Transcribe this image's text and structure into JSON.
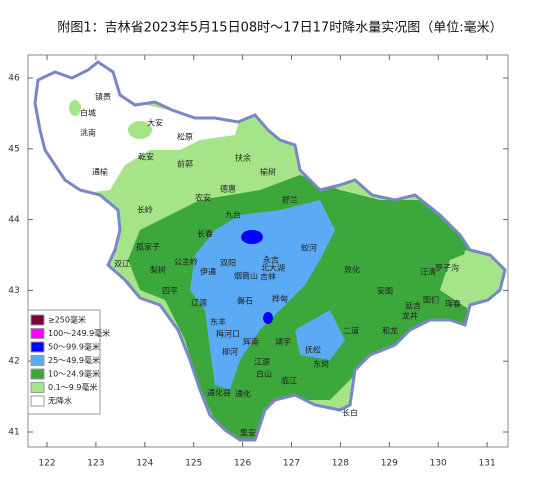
{
  "title": "附图1：吉林省2023年5月15日08时～17日17时降水量实况图（单位:毫米）",
  "axes": {
    "xticks": [
      122,
      123,
      124,
      125,
      126,
      127,
      128,
      129,
      130,
      131
    ],
    "yticks": [
      41,
      42,
      43,
      44,
      45,
      46
    ]
  },
  "legend": [
    {
      "label": "≥250毫米",
      "color": "#7b0040"
    },
    {
      "label": "100～249.9毫米",
      "color": "#ff00ff"
    },
    {
      "label": "50～99.9毫米",
      "color": "#0000ff"
    },
    {
      "label": "25～49.9毫米",
      "color": "#5aaaf5"
    },
    {
      "label": "10～24.9毫米",
      "color": "#3ca83c"
    },
    {
      "label": "0.1～9.9毫米",
      "color": "#a6e48a"
    },
    {
      "label": "无降水",
      "color": "#ffffff"
    }
  ],
  "cities": [
    "镇赉",
    "白城",
    "洮南",
    "大安",
    "松原",
    "乾安",
    "前郭",
    "通榆",
    "扶余",
    "榆树",
    "德惠",
    "农安",
    "长岭",
    "舒兰",
    "九台",
    "长春",
    "孤家子",
    "双辽",
    "梨树",
    "公主岭",
    "伊通",
    "双阳",
    "烟筒山",
    "永吉",
    "吉林",
    "北大湖",
    "蛟河",
    "敦化",
    "安图",
    "汪清",
    "罗子沟",
    "图们",
    "延吉",
    "龙井",
    "珲春",
    "和龙",
    "二道",
    "四平",
    "辽源",
    "磐石",
    "桦甸",
    "东丰",
    "梅河口",
    "辉南",
    "靖宇",
    "抚松",
    "东岗",
    "柳河",
    "白山",
    "江源",
    "临江",
    "通化县",
    "通化",
    "集安",
    "长白"
  ]
}
